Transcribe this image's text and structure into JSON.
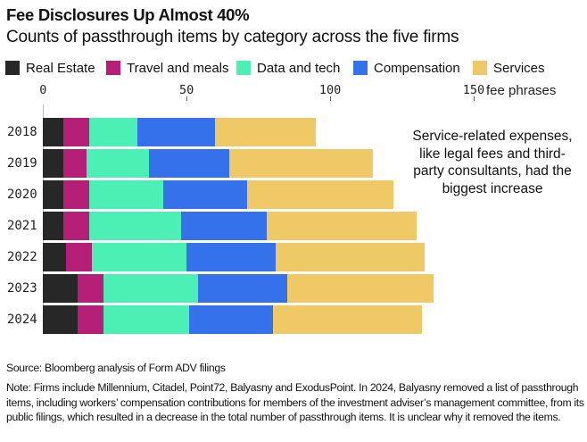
{
  "chart_data": {
    "type": "bar",
    "orientation": "horizontal",
    "stacked": true,
    "title": "Fee Disclosures Up Almost 40%",
    "subtitle": "Counts of passthrough items by category across the five firms",
    "xlabel": "fee phrases",
    "ylabel": "",
    "xlim": [
      0,
      150
    ],
    "x_ticks": [
      0,
      50,
      100,
      150
    ],
    "x_tick_labels": [
      "0",
      "50",
      "100",
      "150"
    ],
    "x_unit_label": "fee phrases",
    "grid": false,
    "legend_position": "top",
    "categories": [
      "2018",
      "2019",
      "2020",
      "2021",
      "2022",
      "2023",
      "2024"
    ],
    "series": [
      {
        "name": "Real Estate",
        "color": "#272727",
        "values": [
          7,
          7,
          7,
          7,
          8,
          12,
          12
        ]
      },
      {
        "name": "Travel and meals",
        "color": "#b51f78",
        "values": [
          9,
          8,
          9,
          9,
          9,
          9,
          9
        ]
      },
      {
        "name": "Data and tech",
        "color": "#4df0b4",
        "values": [
          17,
          22,
          26,
          32,
          33,
          33,
          30
        ]
      },
      {
        "name": "Compensation",
        "color": "#3571ea",
        "values": [
          27,
          28,
          29,
          30,
          31,
          31,
          29
        ]
      },
      {
        "name": "Services",
        "color": "#f0c967",
        "values": [
          35,
          50,
          51,
          52,
          52,
          51,
          52
        ]
      }
    ],
    "annotation": "Service-related expenses, like legal fees and third-party consultants, had the biggest increase"
  },
  "footer": {
    "source": "Source: Bloomberg analysis of Form ADV filings",
    "note": "Note: Firms include Millennium, Citadel, Point72, Balyasny and ExodusPoint. In 2024, Balyasny removed a list of passthrough items, including workers’ compensation contributions for members of the investment adviser’s management committee, from its public filings, which resulted in a decrease in the total number of passthrough items. It is unclear why it removed the items."
  }
}
